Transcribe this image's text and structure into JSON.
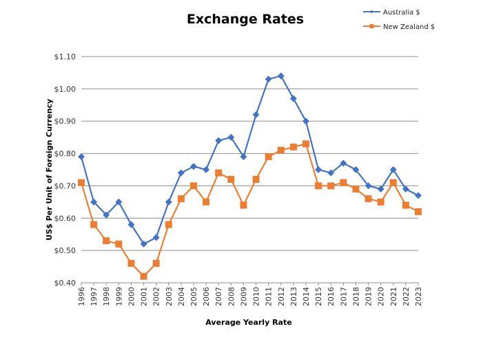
{
  "chart_data": {
    "type": "line",
    "title": "Exchange Rates",
    "xlabel": "Average Yearly Rate",
    "ylabel": "US$ Per Unit of Foreign Currency",
    "ylim": [
      0.4,
      1.1
    ],
    "yticks": [
      "$0.40",
      "$0.50",
      "$0.60",
      "$0.70",
      "$0.80",
      "$0.90",
      "$1.00",
      "$1.10"
    ],
    "ytick_values": [
      0.4,
      0.5,
      0.6,
      0.7,
      0.8,
      0.9,
      1.0,
      1.1
    ],
    "grid": "horizontal",
    "legend": "top-right",
    "x": [
      "1996",
      "1997",
      "1998",
      "1999",
      "2000",
      "2001",
      "2002",
      "2003",
      "2004",
      "2005",
      "2006",
      "2007",
      "2008",
      "2009",
      "2010",
      "2011",
      "2012",
      "2013",
      "2014",
      "2015",
      "2016",
      "2017",
      "2018",
      "2019",
      "2020",
      "2021",
      "2022",
      "2023"
    ],
    "series": [
      {
        "name": "Australia $",
        "color": "#4472C4",
        "marker": "diamond",
        "values": [
          0.79,
          0.65,
          0.61,
          0.65,
          0.58,
          0.52,
          0.54,
          0.65,
          0.74,
          0.76,
          0.75,
          0.84,
          0.85,
          0.79,
          0.92,
          1.03,
          1.04,
          0.97,
          0.9,
          0.75,
          0.74,
          0.77,
          0.75,
          0.7,
          0.69,
          0.75,
          0.69,
          0.67
        ]
      },
      {
        "name": "New Zealand $",
        "color": "#ED7D31",
        "marker": "square",
        "values": [
          0.71,
          0.58,
          0.53,
          0.52,
          0.46,
          0.42,
          0.46,
          0.58,
          0.66,
          0.7,
          0.65,
          0.74,
          0.72,
          0.64,
          0.72,
          0.79,
          0.81,
          0.82,
          0.83,
          0.7,
          0.7,
          0.71,
          0.69,
          0.66,
          0.65,
          0.71,
          0.64,
          0.62
        ]
      }
    ]
  }
}
